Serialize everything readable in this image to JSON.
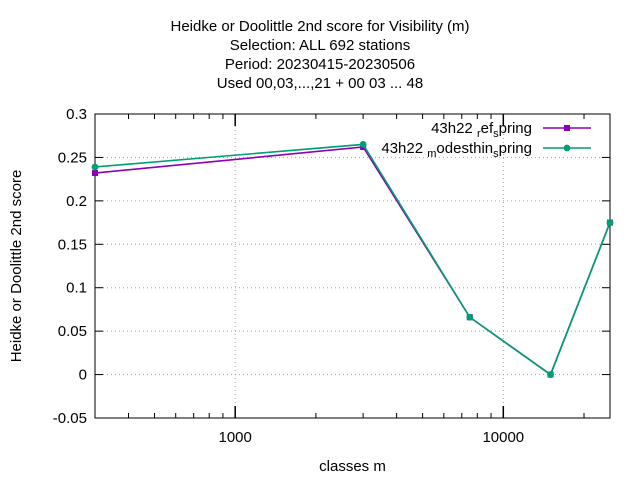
{
  "chart_data": {
    "type": "line",
    "title_lines": [
      "Heidke or Doolittle 2nd score  for Visibility (m)",
      "Selection: ALL     692 stations",
      "Period: 20230415-20230506",
      "Used  00,03,...,21  + 00 03 ... 48"
    ],
    "xlabel": "classes m",
    "ylabel": "Heidke or Doolittle 2nd score",
    "x_scale": "log",
    "xlim": [
      300,
      25000
    ],
    "ylim": [
      -0.05,
      0.3
    ],
    "x_ticks": [
      {
        "value": 1000,
        "label": "1000"
      },
      {
        "value": 10000,
        "label": "10000"
      }
    ],
    "y_ticks": [
      {
        "value": -0.05,
        "label": "-0.05"
      },
      {
        "value": 0,
        "label": "0"
      },
      {
        "value": 0.05,
        "label": "0.05"
      },
      {
        "value": 0.1,
        "label": "0.1"
      },
      {
        "value": 0.15,
        "label": "0.15"
      },
      {
        "value": 0.2,
        "label": "0.2"
      },
      {
        "value": 0.25,
        "label": "0.25"
      },
      {
        "value": 0.3,
        "label": "0.3"
      }
    ],
    "grid": true,
    "legend_position": "top-right",
    "series": [
      {
        "name_main": "43h22 ",
        "name_sub": "r",
        "name_tail_a": "ef",
        "name_sub2": "s",
        "name_tail_b": "pring",
        "color": "#8b00b8",
        "marker": "square",
        "x": [
          300,
          3000,
          7500,
          15000,
          25000
        ],
        "y": [
          0.232,
          0.262,
          0.066,
          0.0,
          0.175
        ]
      },
      {
        "name_main": "43h22 ",
        "name_sub": "m",
        "name_tail_a": "odesthin",
        "name_sub2": "s",
        "name_tail_b": "pring",
        "color": "#009e73",
        "marker": "circle",
        "x": [
          300,
          3000,
          7500,
          15000,
          25000
        ],
        "y": [
          0.239,
          0.265,
          0.066,
          0.0,
          0.175
        ]
      }
    ]
  }
}
